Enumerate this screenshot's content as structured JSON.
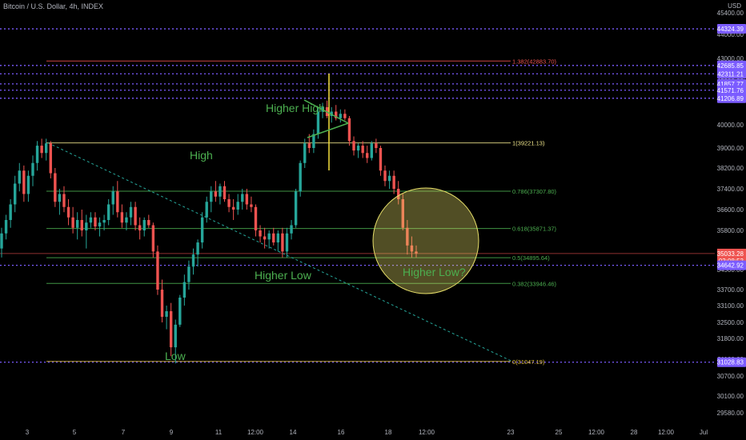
{
  "header": {
    "title": "Bitcoin / U.S. Dollar, 4h, INDEX",
    "currency": "USD",
    "top_price": "45400.00"
  },
  "colors": {
    "background": "#000000",
    "up": "#26a69a",
    "down": "#ef5350",
    "level_purple": "#7b5cff",
    "fib_green": "#4caf50",
    "fib_yellow": "#f0e68c",
    "annotation_green": "#4caf50",
    "circle": "#e8e06a",
    "current_price": "#ef5350"
  },
  "chart_data": {
    "type": "candlestick",
    "title": "Bitcoin / U.S. Dollar, 4h, INDEX",
    "ylabel": "USD",
    "y_axis_ticks": [
      44000,
      43000,
      42000,
      40000,
      39000,
      38200,
      37400,
      36600,
      35800,
      34500,
      33700,
      33100,
      32500,
      31800,
      31100,
      30700,
      30100,
      29580
    ],
    "x_axis_ticks": [
      "3",
      "5",
      "7",
      "9",
      "11",
      "12:00",
      "14",
      "16",
      "18",
      "12:00",
      "23",
      "25",
      "12:00",
      "28",
      "12:00",
      "Jul"
    ],
    "price_labels": [
      {
        "text": "44324.39",
        "value": 44324.39,
        "kind": "level"
      },
      {
        "text": "42685.85",
        "value": 42685.85,
        "kind": "level"
      },
      {
        "text": "42311.21",
        "value": 42311.21,
        "kind": "level"
      },
      {
        "text": "41857.77",
        "value": 41857.77,
        "kind": "level"
      },
      {
        "text": "41571.76",
        "value": 41571.76,
        "kind": "level"
      },
      {
        "text": "41206.89",
        "value": 41206.89,
        "kind": "level"
      },
      {
        "text": "35033.28",
        "value": 35033.28,
        "kind": "current",
        "timer": "03:08:53"
      },
      {
        "text": "34642.92",
        "value": 34642.92,
        "kind": "level"
      },
      {
        "text": "31028.83",
        "value": 31028.83,
        "kind": "level"
      }
    ],
    "fib_levels": [
      {
        "label": "1.382(42883.70)",
        "value": 42883.7
      },
      {
        "label": "1(39221.13)",
        "value": 39221.13
      },
      {
        "label": "0.786(37307.80)",
        "value": 37307.8
      },
      {
        "label": "0.618(35871.37)",
        "value": 35871.37
      },
      {
        "label": "0.5(34895.64)",
        "value": 34895.64
      },
      {
        "label": "0.382(33946.46)",
        "value": 33946.46
      },
      {
        "label": "0(31047.19)",
        "value": 31047.19
      }
    ],
    "annotations": [
      "High",
      "Higher High",
      "Higher Low",
      "Low",
      "Higher Low?"
    ],
    "candles": [
      [
        35200,
        35900,
        34900,
        35700
      ],
      [
        35700,
        36400,
        35500,
        36200
      ],
      [
        36200,
        37000,
        35900,
        36800
      ],
      [
        36800,
        37900,
        36500,
        37600
      ],
      [
        37600,
        38400,
        37300,
        38100
      ],
      [
        38100,
        38300,
        36900,
        37200
      ],
      [
        37200,
        38100,
        36900,
        37900
      ],
      [
        37900,
        38700,
        37500,
        38400
      ],
      [
        38400,
        39300,
        38100,
        39100
      ],
      [
        39100,
        39400,
        38600,
        38800
      ],
      [
        38800,
        39400,
        38500,
        39200
      ],
      [
        39200,
        39300,
        37800,
        38000
      ],
      [
        38000,
        38200,
        36700,
        36900
      ],
      [
        36900,
        37400,
        36400,
        37200
      ],
      [
        37200,
        37500,
        36500,
        36700
      ],
      [
        36700,
        37000,
        36000,
        36300
      ],
      [
        36300,
        36700,
        35700,
        35900
      ],
      [
        35900,
        36500,
        35500,
        36200
      ],
      [
        36200,
        36600,
        35600,
        35800
      ],
      [
        35800,
        36400,
        35200,
        36100
      ],
      [
        36100,
        36500,
        35900,
        36300
      ],
      [
        36300,
        36500,
        35800,
        35950
      ],
      [
        35950,
        36300,
        35600,
        36100
      ],
      [
        36100,
        36400,
        35800,
        36200
      ],
      [
        36200,
        37000,
        36000,
        36800
      ],
      [
        36800,
        37500,
        36400,
        37300
      ],
      [
        37300,
        37700,
        36300,
        36500
      ],
      [
        36500,
        36800,
        35900,
        36100
      ],
      [
        36100,
        36500,
        35800,
        36300
      ],
      [
        36300,
        36900,
        36000,
        36700
      ],
      [
        36700,
        36900,
        35800,
        36000
      ],
      [
        36000,
        36300,
        35500,
        35800
      ],
      [
        35800,
        36300,
        35600,
        36200
      ],
      [
        36200,
        36400,
        35900,
        36000
      ],
      [
        36000,
        36100,
        34900,
        35100
      ],
      [
        35100,
        35300,
        33500,
        33700
      ],
      [
        33700,
        34100,
        32500,
        32700
      ],
      [
        32700,
        33100,
        32200,
        32900
      ],
      [
        32900,
        33200,
        31200,
        31500
      ],
      [
        31500,
        32600,
        31000,
        32400
      ],
      [
        32400,
        33500,
        32300,
        33400
      ],
      [
        33400,
        34300,
        33100,
        34000
      ],
      [
        34000,
        34800,
        33700,
        34600
      ],
      [
        34600,
        35200,
        34300,
        35000
      ],
      [
        35000,
        35500,
        34600,
        35400
      ],
      [
        35400,
        36500,
        35200,
        36300
      ],
      [
        36300,
        37100,
        36100,
        36900
      ],
      [
        36900,
        37500,
        36500,
        37300
      ],
      [
        37300,
        37700,
        36900,
        37100
      ],
      [
        37100,
        37600,
        36800,
        37500
      ],
      [
        37500,
        37700,
        36900,
        37000
      ],
      [
        37000,
        37200,
        36500,
        36700
      ],
      [
        36700,
        37000,
        36200,
        36600
      ],
      [
        36600,
        37200,
        36400,
        36900
      ],
      [
        36900,
        37400,
        36600,
        37200
      ],
      [
        37200,
        37400,
        36600,
        36800
      ],
      [
        36800,
        37100,
        36500,
        36700
      ],
      [
        36700,
        36800,
        35600,
        35800
      ],
      [
        35800,
        36000,
        35400,
        35600
      ],
      [
        35600,
        35900,
        35200,
        35500
      ],
      [
        35500,
        35800,
        35200,
        35700
      ],
      [
        35700,
        35900,
        35300,
        35400
      ],
      [
        35400,
        35800,
        35100,
        35700
      ],
      [
        35700,
        35900,
        34900,
        35100
      ],
      [
        35100,
        35900,
        34900,
        35700
      ],
      [
        35700,
        36200,
        35500,
        36000
      ],
      [
        36000,
        37400,
        35900,
        37300
      ],
      [
        37300,
        38500,
        37100,
        38400
      ],
      [
        38400,
        39400,
        38200,
        39200
      ],
      [
        39200,
        39600,
        38800,
        39000
      ],
      [
        39000,
        39800,
        38800,
        39600
      ],
      [
        39600,
        40800,
        39400,
        40600
      ],
      [
        40600,
        41000,
        40300,
        40800
      ],
      [
        40800,
        41100,
        40300,
        40400
      ],
      [
        40400,
        40800,
        40100,
        40600
      ],
      [
        40600,
        40900,
        40200,
        40300
      ],
      [
        40300,
        40700,
        40100,
        40500
      ],
      [
        40500,
        40700,
        40200,
        40300
      ],
      [
        40300,
        40400,
        39100,
        39300
      ],
      [
        39300,
        39500,
        38700,
        38900
      ],
      [
        38900,
        39200,
        38600,
        39100
      ],
      [
        39100,
        39300,
        38600,
        38800
      ],
      [
        38800,
        39100,
        38400,
        38600
      ],
      [
        38600,
        39300,
        38500,
        39200
      ],
      [
        39200,
        39400,
        38800,
        39000
      ],
      [
        39000,
        39100,
        37900,
        38100
      ],
      [
        38100,
        38300,
        37500,
        37700
      ],
      [
        37700,
        38100,
        37400,
        37900
      ],
      [
        37900,
        38100,
        37200,
        37400
      ],
      [
        37400,
        37700,
        36800,
        37000
      ],
      [
        37000,
        37200,
        35800,
        35900
      ],
      [
        35900,
        36200,
        35000,
        35300
      ],
      [
        35300,
        35600,
        34900,
        35100
      ],
      [
        35100,
        35300,
        34900,
        35033
      ]
    ]
  }
}
